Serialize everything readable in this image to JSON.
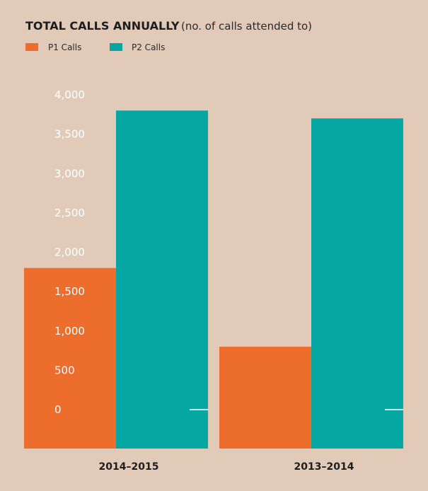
{
  "chart_data": {
    "type": "bar",
    "title": "TOTAL CALLS ANNUALLY",
    "subtitle": "(no. of calls attended to)",
    "categories": [
      "2014–2015",
      "2013–2014"
    ],
    "series": [
      {
        "name": "P1 Calls",
        "color": "#ec6d2c",
        "values": [
          1800,
          800
        ]
      },
      {
        "name": "P2 Calls",
        "color": "#06a6a3",
        "values": [
          3800,
          3700
        ]
      }
    ],
    "y_ticks": [
      "0",
      "500",
      "1,000",
      "1,500",
      "2,000",
      "2,500",
      "3,000",
      "3,500",
      "4,000"
    ],
    "ylim": [
      0,
      4000
    ],
    "grid": false,
    "legend_position": "top-left"
  }
}
